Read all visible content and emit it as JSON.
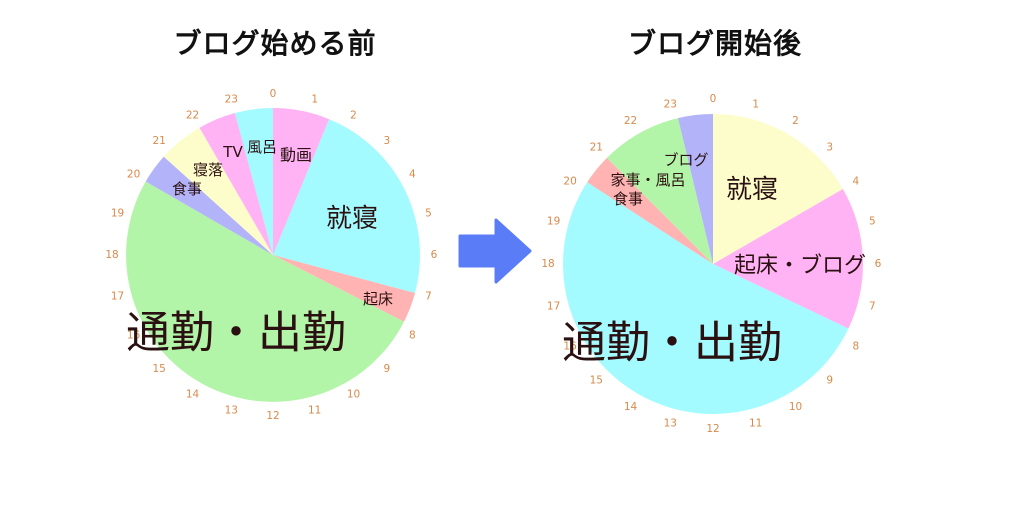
{
  "chart_data": [
    {
      "type": "pie",
      "title": "ブログ始める前",
      "hour_ticks": [
        "0",
        "1",
        "2",
        "3",
        "4",
        "5",
        "6",
        "7",
        "8",
        "9",
        "10",
        "11",
        "12",
        "13",
        "14",
        "15",
        "16",
        "17",
        "18",
        "19",
        "20",
        "21",
        "22",
        "23"
      ],
      "slices": [
        {
          "label": "動画",
          "start_hour": 0,
          "end_hour": 1.5,
          "color": "#ffb3f5"
        },
        {
          "label": "就寝",
          "start_hour": 1.5,
          "end_hour": 7.0,
          "color": "#a3fbff"
        },
        {
          "label": "起床",
          "start_hour": 7.0,
          "end_hour": 7.8,
          "color": "#ffb3b3"
        },
        {
          "label": "通勤・出勤",
          "start_hour": 7.8,
          "end_hour": 20.0,
          "color": "#b3f5a8"
        },
        {
          "label": "食事",
          "start_hour": 20.0,
          "end_hour": 20.8,
          "color": "#b3b3f9"
        },
        {
          "label": "寝落",
          "start_hour": 20.8,
          "end_hour": 22.0,
          "color": "#fdfdcc"
        },
        {
          "label": "TV",
          "start_hour": 22.0,
          "end_hour": 23.0,
          "color": "#ffb3f5"
        },
        {
          "label": "風呂",
          "start_hour": 23.0,
          "end_hour": 24.0,
          "color": "#a3fbff"
        }
      ]
    },
    {
      "type": "pie",
      "title": "ブログ開始後",
      "hour_ticks": [
        "0",
        "1",
        "2",
        "3",
        "4",
        "5",
        "6",
        "7",
        "8",
        "9",
        "10",
        "11",
        "12",
        "13",
        "14",
        "15",
        "16",
        "17",
        "18",
        "19",
        "20",
        "21",
        "22",
        "23"
      ],
      "slices": [
        {
          "label": "就寝",
          "start_hour": 0,
          "end_hour": 4.0,
          "color": "#fdfdcc"
        },
        {
          "label": "起床・ブログ",
          "start_hour": 4.0,
          "end_hour": 7.7,
          "color": "#ffb3f5"
        },
        {
          "label": "通勤・出勤",
          "start_hour": 7.7,
          "end_hour": 20.2,
          "color": "#a3fbff"
        },
        {
          "label": "食事",
          "start_hour": 20.2,
          "end_hour": 21.0,
          "color": "#ffb3b3"
        },
        {
          "label": "家事・風呂",
          "start_hour": 21.0,
          "end_hour": 23.1,
          "color": "#b3f5a8"
        },
        {
          "label": "ブログ",
          "start_hour": 23.1,
          "end_hour": 24.0,
          "color": "#b3b3f9"
        }
      ]
    }
  ],
  "colors": {
    "tick": "#d88a4a",
    "label": "#2a1010",
    "arrow": "#5a7cf7"
  },
  "arrow_icon": "right-arrow-icon"
}
